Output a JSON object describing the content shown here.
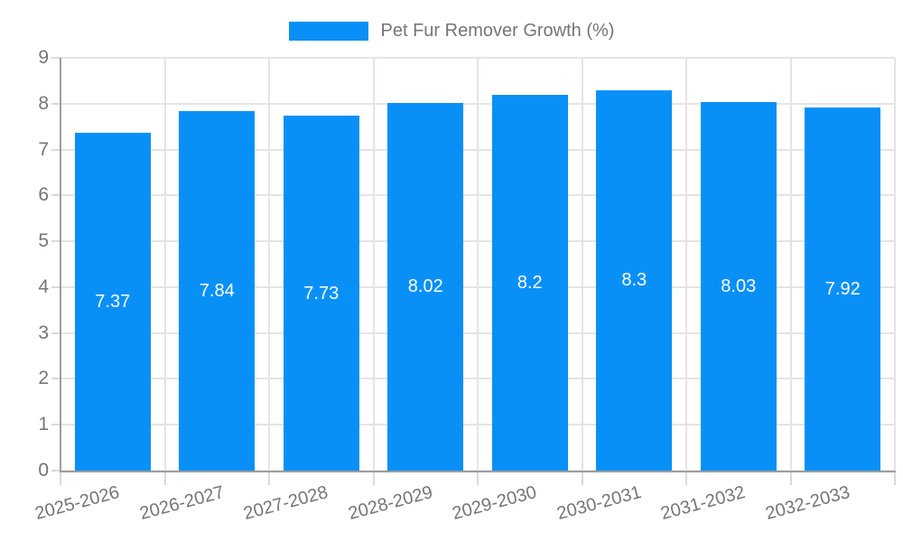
{
  "legend": {
    "label": "Pet Fur Remover Growth (%)"
  },
  "chart_data": {
    "type": "bar",
    "title": "Pet Fur Remover Growth (%)",
    "series_name": "Pet Fur Remover Growth (%)",
    "categories": [
      "2025-2026",
      "2026-2027",
      "2027-2028",
      "2028-2029",
      "2029-2030",
      "2030-2031",
      "2031-2032",
      "2032-2033"
    ],
    "values": [
      7.37,
      7.84,
      7.73,
      8.02,
      8.2,
      8.3,
      8.03,
      7.92
    ],
    "value_labels": [
      "7.37",
      "7.84",
      "7.73",
      "8.02",
      "8.2",
      "8.3",
      "8.03",
      "7.92"
    ],
    "xlabel": "",
    "ylabel": "",
    "ylim": [
      0,
      9
    ],
    "yticks": [
      0,
      1,
      2,
      3,
      4,
      5,
      6,
      7,
      8,
      9
    ],
    "grid": true,
    "legend_position": "top-center",
    "x_label_rotation_deg": -15,
    "colors": {
      "bar": "#0990f7",
      "value_label": "#ffffff",
      "grid_line": "#e4e4e4",
      "tick_mark": "#d9d9d9",
      "axis_line": "#9e9e9e",
      "tick_label": "#757575",
      "legend_text": "#757575",
      "background": "#ffffff"
    }
  }
}
